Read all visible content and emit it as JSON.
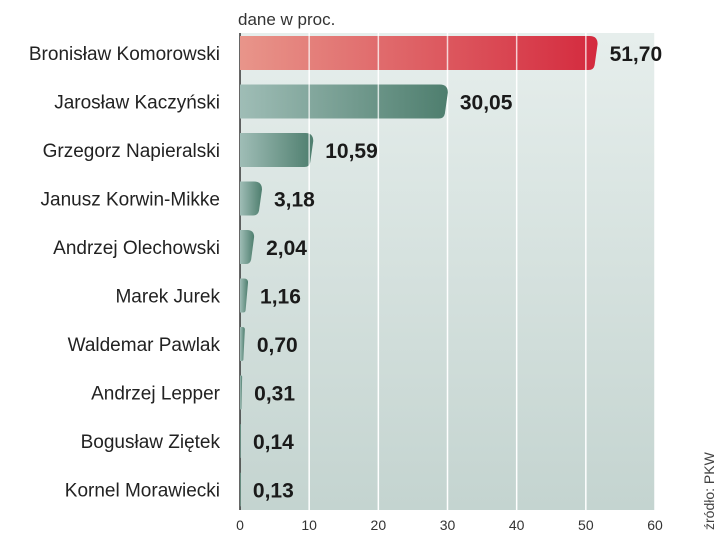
{
  "chart_data": {
    "type": "bar",
    "orientation": "horizontal",
    "unit_note": "dane w proc.",
    "source": "źródło: PKW",
    "categories": [
      "Bronisław Komorowski",
      "Jarosław Kaczyński",
      "Grzegorz Napieralski",
      "Janusz Korwin-Mikke",
      "Andrzej Olechowski",
      "Marek Jurek",
      "Waldemar Pawlak",
      "Andrzej Lepper",
      "Bogusław Ziętek",
      "Kornel Morawiecki"
    ],
    "values": [
      51.7,
      30.05,
      10.59,
      3.18,
      2.04,
      1.16,
      0.7,
      0.31,
      0.14,
      0.13
    ],
    "value_labels": [
      "51,70",
      "30,05",
      "10,59",
      "3,18",
      "2,04",
      "1,16",
      "0,70",
      "0,31",
      "0,14",
      "0,13"
    ],
    "xlim": [
      0,
      60
    ],
    "xticks": [
      0,
      10,
      20,
      30,
      40,
      50,
      60
    ],
    "grid": true,
    "colors": {
      "highlight_start": "#e8958a",
      "highlight_end": "#d42a3e",
      "bar_start": "#9fbdb6",
      "bar_end": "#4e7e6e",
      "band_light": "#e6eeec",
      "band_dark": "#c4d4d0"
    }
  }
}
